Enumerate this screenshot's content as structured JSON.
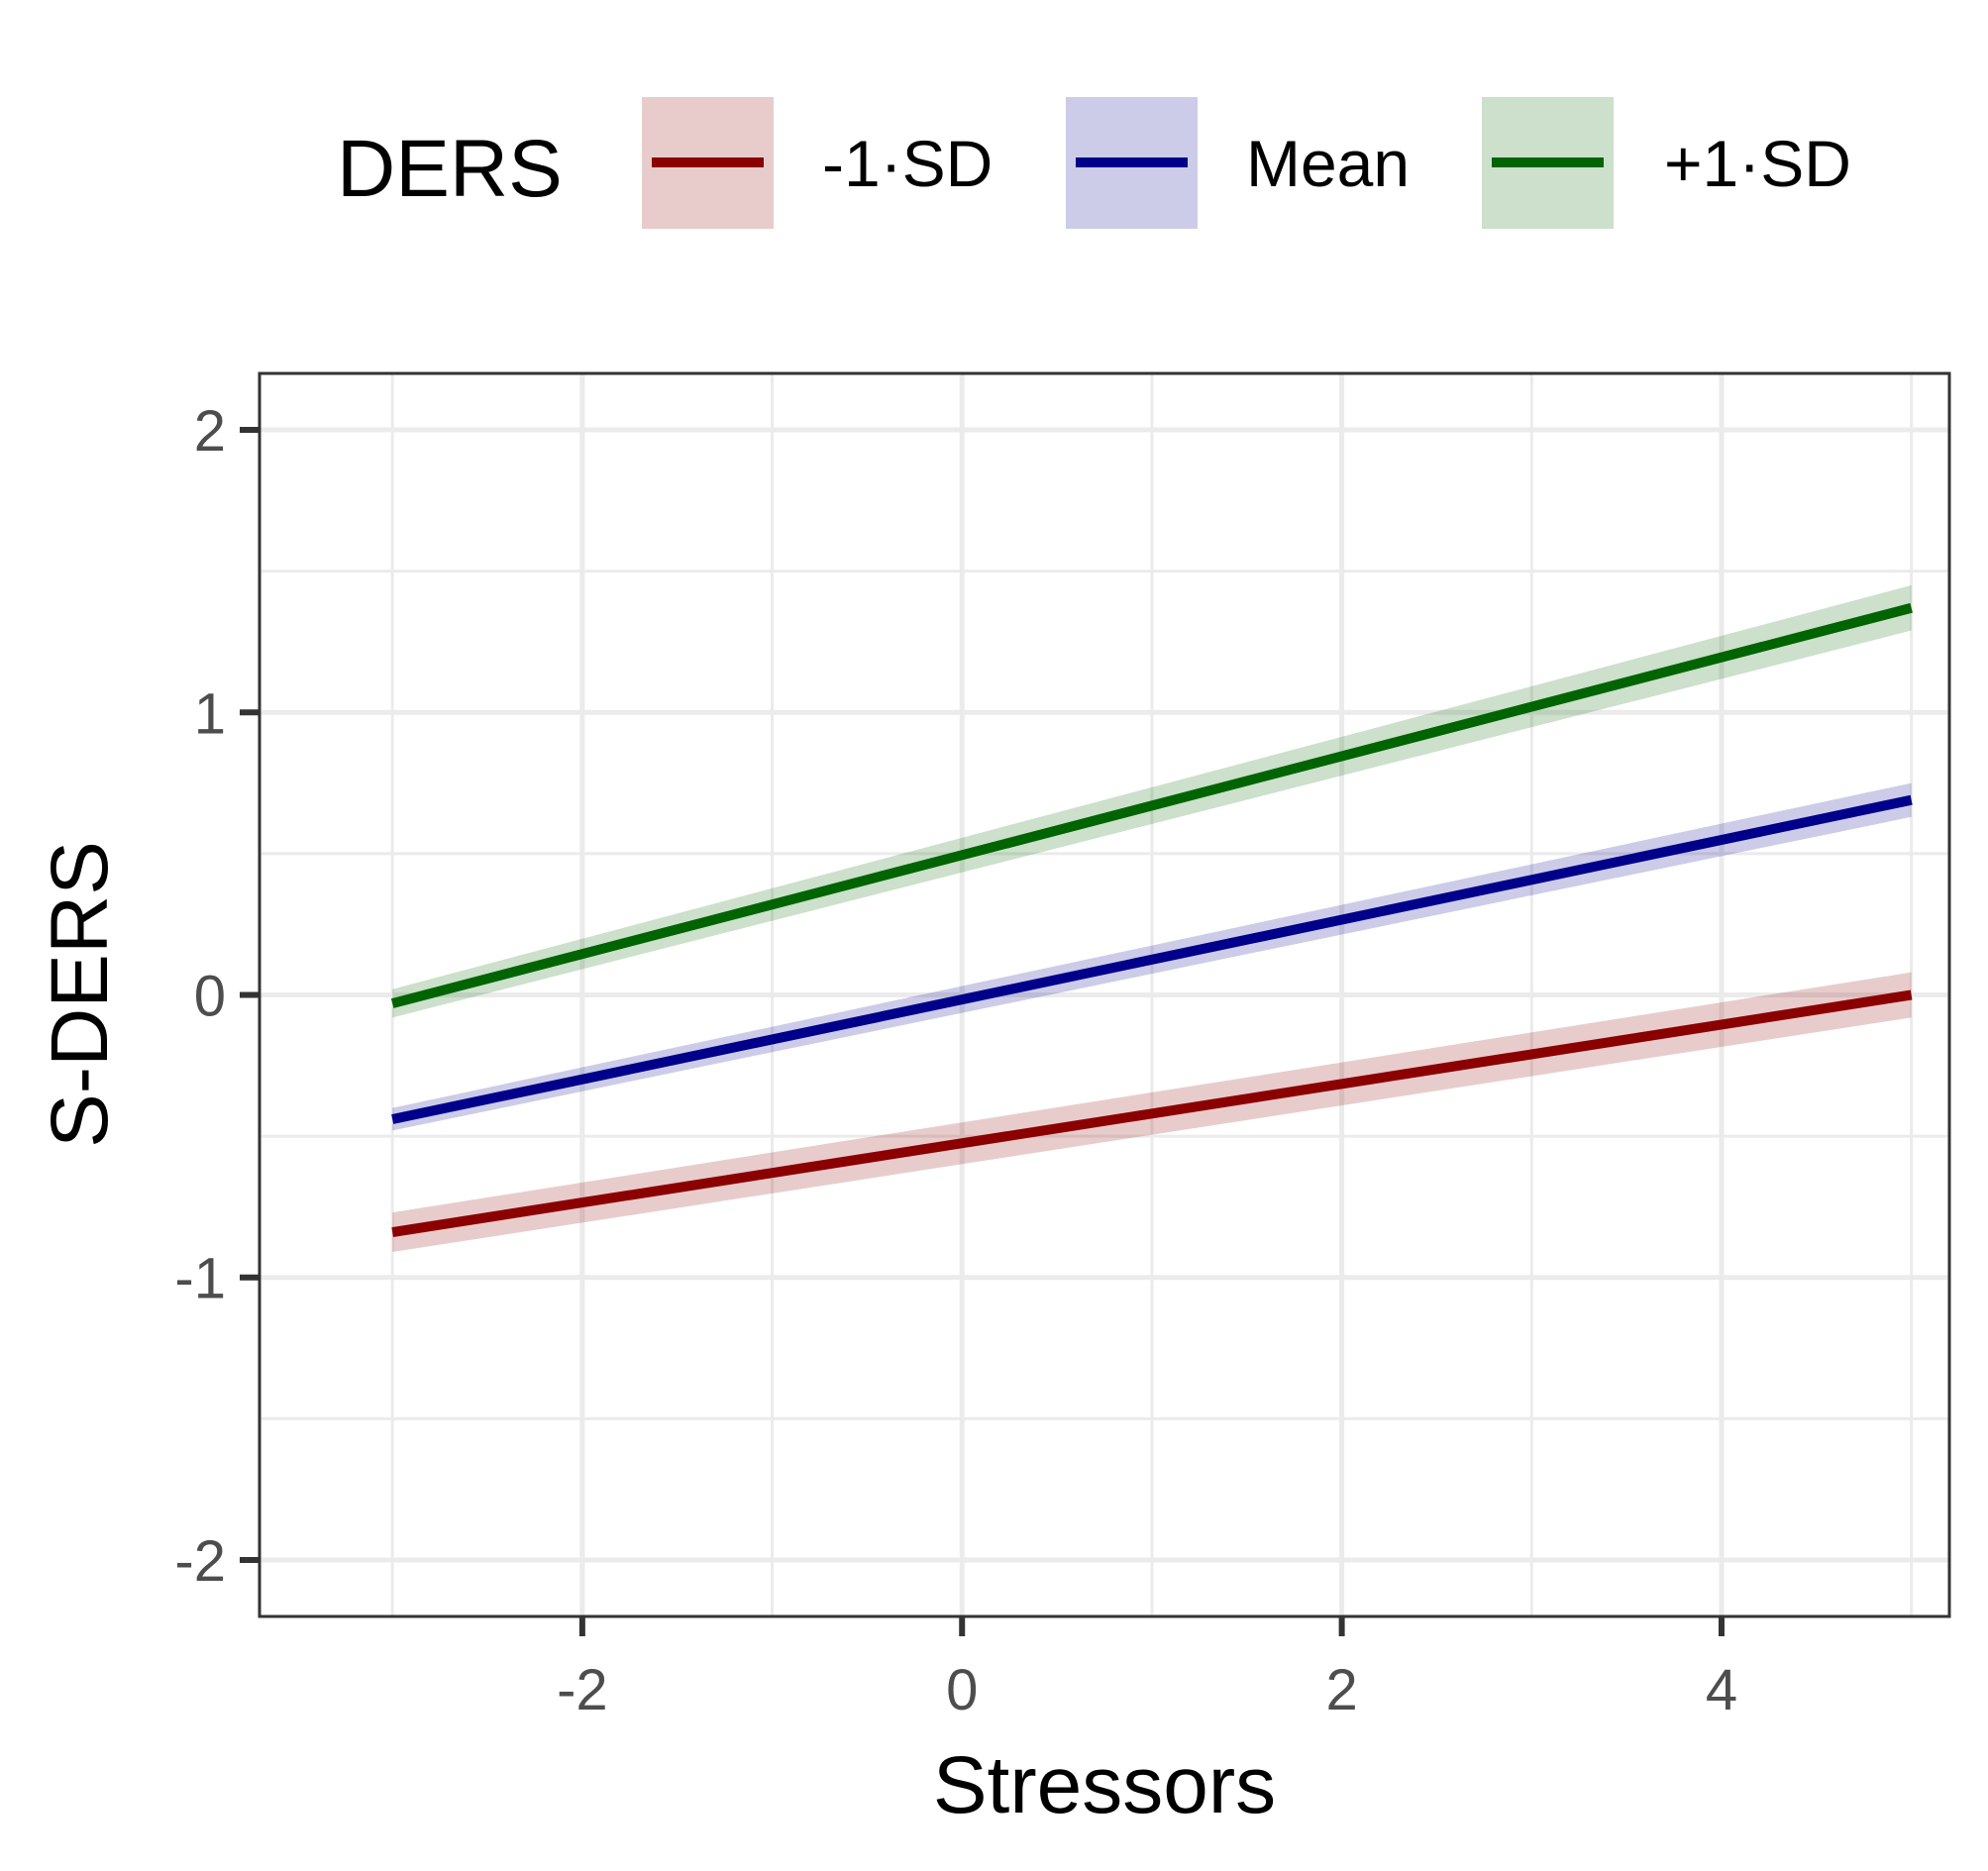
{
  "chart_data": {
    "type": "line",
    "xlabel": "Stressors",
    "ylabel": "S-DERS",
    "xlim": [
      -3.7,
      5.2
    ],
    "ylim": [
      -2.2,
      2.2
    ],
    "x_ticks": [
      -2,
      0,
      2,
      4
    ],
    "x_tick_labels": [
      "-2",
      "0",
      "2",
      "4"
    ],
    "y_ticks": [
      -2,
      -1,
      0,
      1,
      2
    ],
    "y_tick_labels": [
      "-2",
      "-1",
      "0",
      "1",
      "2"
    ],
    "grid": true,
    "legend": {
      "title": "DERS",
      "position": "top"
    },
    "series": [
      {
        "name": "-1·SD",
        "color": "#8b0000",
        "x": [
          -3,
          5
        ],
        "y": [
          -0.84,
          0.0
        ],
        "ci_half_width": [
          0.07,
          0.08
        ]
      },
      {
        "name": "Mean",
        "color": "#00008b",
        "x": [
          -3,
          5
        ],
        "y": [
          -0.44,
          0.69
        ],
        "ci_half_width": [
          0.04,
          0.06
        ]
      },
      {
        "name": "+1·SD",
        "color": "#006400",
        "x": [
          -3,
          5
        ],
        "y": [
          -0.03,
          1.37
        ],
        "ci_half_width": [
          0.05,
          0.08
        ]
      }
    ]
  }
}
